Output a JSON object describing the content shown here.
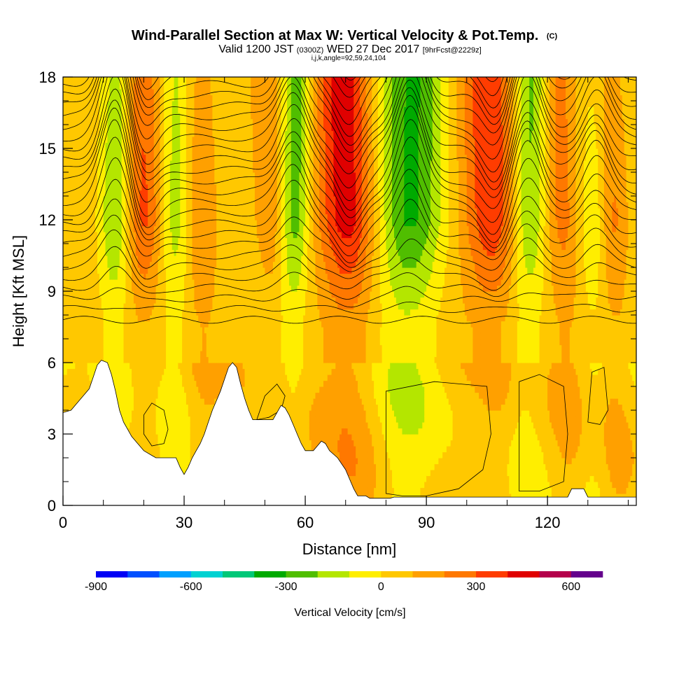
{
  "title": "Wind-Parallel Section at Max W: Vertical Velocity & Pot.Temp.",
  "title_units": "(C)",
  "subtitle": {
    "valid": "Valid 1200 JST",
    "utc": "(0300Z)",
    "date": "WED 27 Dec 2017",
    "forecast": "[9hrFcst@2229z]"
  },
  "indices_line": "i,j,k,angle=92,59,24,104",
  "colors": {
    "terrain": "#ffffff",
    "contour": "#000000",
    "axis": "#000000"
  },
  "chart_data": {
    "type": "heatmap",
    "x_axis": {
      "label": "Distance [nm]",
      "range": [
        0,
        142
      ],
      "major_ticks": [
        0,
        30,
        60,
        90,
        120
      ],
      "tick_labels": [
        "0",
        "30",
        "60",
        "90",
        "120"
      ],
      "minor_step": 10
    },
    "y_axis": {
      "label": "Height [Kft MSL]",
      "range": [
        0,
        18
      ],
      "major_ticks": [
        0,
        3,
        6,
        9,
        12,
        15,
        18
      ],
      "tick_labels": [
        "0",
        "3",
        "6",
        "9",
        "12",
        "15",
        "18"
      ],
      "minor_step": 1
    },
    "colorbar": {
      "label": "Vertical Velocity [cm/s]",
      "tick_values": [
        -900,
        -600,
        -300,
        0,
        300,
        600
      ],
      "tick_labels": [
        "-900",
        "-600",
        "-300",
        "0",
        "300",
        "600"
      ],
      "bin_edges": [
        -900,
        -800,
        -700,
        -600,
        -500,
        -400,
        -300,
        -200,
        -100,
        0,
        100,
        200,
        300,
        400,
        500,
        600,
        700
      ],
      "colors": [
        "#0000f5",
        "#0050ff",
        "#00a0ff",
        "#00d2d2",
        "#00c878",
        "#00aa00",
        "#50be00",
        "#b4e600",
        "#ffee00",
        "#ffc800",
        "#ffa000",
        "#ff7800",
        "#ff3c00",
        "#e00000",
        "#b4004b",
        "#64008c"
      ]
    },
    "terrain_kft": [
      [
        0,
        3.9
      ],
      [
        2,
        4.0
      ],
      [
        3.5,
        4.3
      ],
      [
        5,
        4.6
      ],
      [
        6.5,
        4.9
      ],
      [
        7.5,
        5.4
      ],
      [
        8.5,
        5.9
      ],
      [
        9.5,
        6.1
      ],
      [
        11,
        6.0
      ],
      [
        12,
        5.5
      ],
      [
        13,
        4.8
      ],
      [
        14,
        4.0
      ],
      [
        15,
        3.5
      ],
      [
        16,
        3.2
      ],
      [
        17,
        2.9
      ],
      [
        18,
        2.7
      ],
      [
        19,
        2.5
      ],
      [
        20,
        2.3
      ],
      [
        22,
        2.1
      ],
      [
        23,
        2.0
      ],
      [
        28,
        2.0
      ],
      [
        29,
        1.6
      ],
      [
        30,
        1.3
      ],
      [
        31,
        1.6
      ],
      [
        32,
        2.0
      ],
      [
        33,
        2.3
      ],
      [
        34,
        2.6
      ],
      [
        35,
        3.0
      ],
      [
        36,
        3.5
      ],
      [
        37,
        4.0
      ],
      [
        38,
        4.4
      ],
      [
        39,
        4.8
      ],
      [
        40,
        5.3
      ],
      [
        41,
        5.8
      ],
      [
        42,
        6.0
      ],
      [
        43,
        5.8
      ],
      [
        44,
        5.1
      ],
      [
        45,
        4.5
      ],
      [
        46,
        4.0
      ],
      [
        47,
        3.6
      ],
      [
        52,
        3.6
      ],
      [
        53,
        3.9
      ],
      [
        54,
        4.2
      ],
      [
        55,
        4.1
      ],
      [
        56,
        3.8
      ],
      [
        57,
        3.4
      ],
      [
        58,
        3.0
      ],
      [
        59,
        2.6
      ],
      [
        60,
        2.3
      ],
      [
        62,
        2.3
      ],
      [
        63,
        2.5
      ],
      [
        64,
        2.7
      ],
      [
        65,
        2.6
      ],
      [
        66,
        2.3
      ],
      [
        68,
        2.0
      ],
      [
        70,
        1.5
      ],
      [
        71,
        1.1
      ],
      [
        72,
        0.7
      ],
      [
        73,
        0.4
      ],
      [
        75,
        0.4
      ],
      [
        76,
        0.3
      ],
      [
        81,
        0.3
      ],
      [
        82,
        0.35
      ],
      [
        104,
        0.35
      ],
      [
        105,
        0.35
      ],
      [
        125,
        0.35
      ],
      [
        126,
        0.7
      ],
      [
        129,
        0.7
      ],
      [
        130,
        0.35
      ],
      [
        142,
        0.35
      ]
    ],
    "updraft_cores": [
      {
        "x": 20,
        "w": 4,
        "peak": 340
      },
      {
        "x": 33,
        "w": 3,
        "peak": 180
      },
      {
        "x": 52,
        "w": 3,
        "peak": 170
      },
      {
        "x": 71,
        "w": 5,
        "peak": 400
      },
      {
        "x": 107,
        "w": 5,
        "peak": 360
      },
      {
        "x": 124,
        "w": 3,
        "peak": 180
      },
      {
        "x": 136,
        "w": 3,
        "peak": 300
      }
    ],
    "downdraft_cores": [
      {
        "x": 13,
        "w": 3,
        "peak": -340
      },
      {
        "x": 28,
        "w": 3,
        "peak": -260
      },
      {
        "x": 57,
        "w": 2.5,
        "peak": -300
      },
      {
        "x": 86,
        "w": 6,
        "peak": -340
      },
      {
        "x": 115,
        "w": 3,
        "peak": -280
      },
      {
        "x": 132,
        "w": 3,
        "peak": -260
      }
    ],
    "isentropes": {
      "count": 30,
      "base_kft": 7.8,
      "spacing_kft": 0.45,
      "wave_ridges": [
        [
          13,
          3.6
        ],
        [
          57,
          2.2
        ],
        [
          86,
          3.0
        ],
        [
          115,
          2.6
        ],
        [
          132,
          2.0
        ]
      ],
      "wave_troughs": [
        [
          20,
          -1.2
        ],
        [
          71,
          -1.6
        ],
        [
          107,
          -1.4
        ]
      ]
    }
  }
}
